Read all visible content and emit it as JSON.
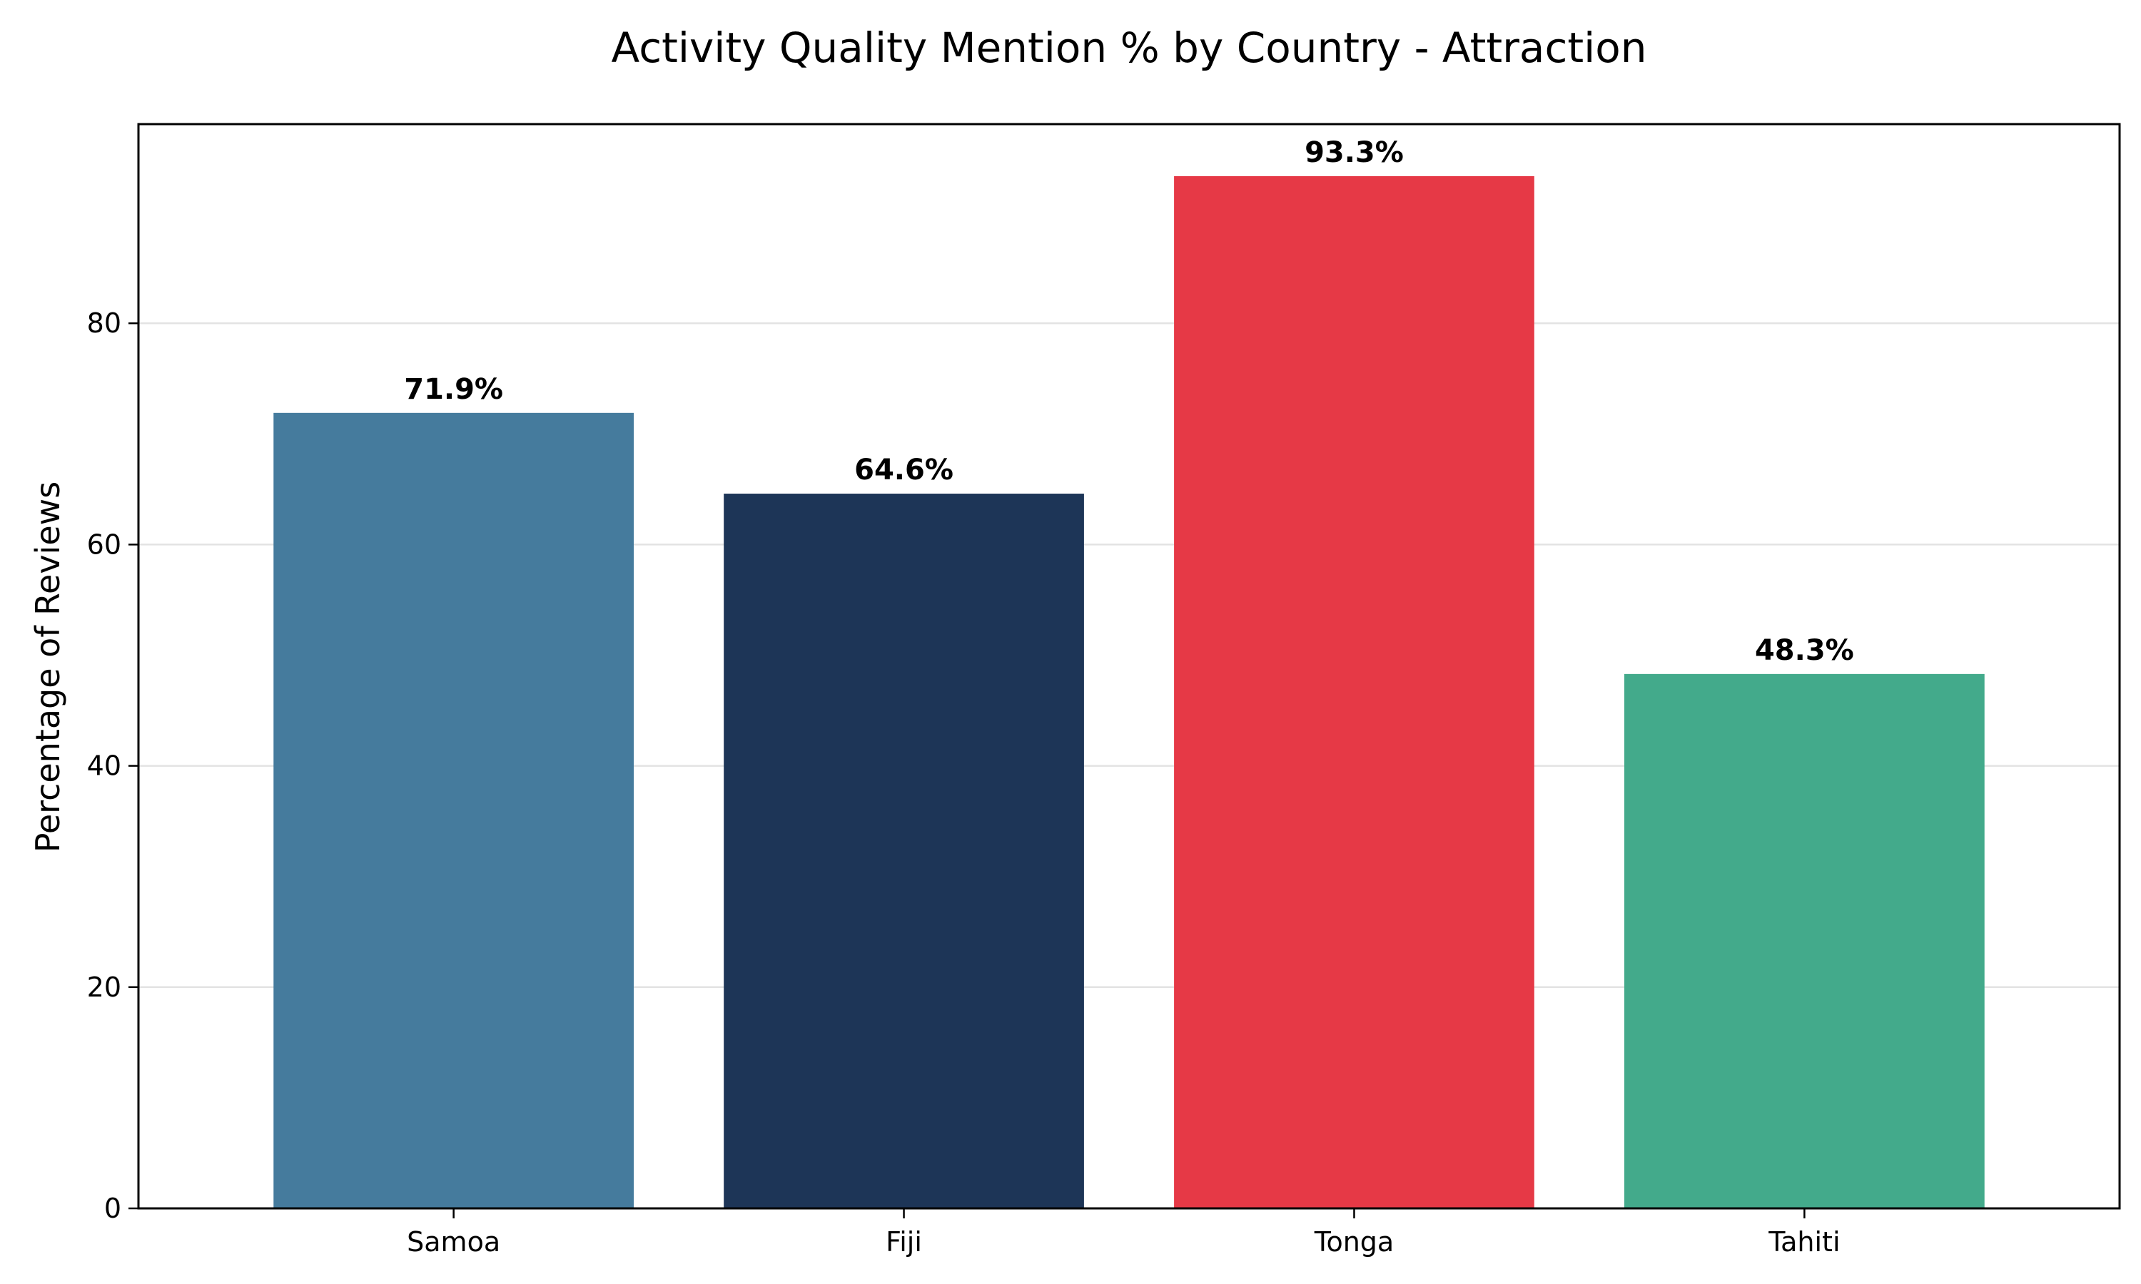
{
  "chart_data": {
    "type": "bar",
    "title": "Activity Quality Mention % by Country - Attraction",
    "xlabel": "",
    "ylabel": "Percentage of Reviews",
    "categories": [
      "Samoa",
      "Fiji",
      "Tonga",
      "Tahiti"
    ],
    "values": [
      71.9,
      64.6,
      93.3,
      48.3
    ],
    "value_labels": [
      "71.9%",
      "64.6%",
      "93.3%",
      "48.3%"
    ],
    "colors": [
      "#457b9d",
      "#1d3557",
      "#e63946",
      "#43aa8b"
    ],
    "yticks": [
      0,
      20,
      40,
      60,
      80
    ],
    "ytick_labels": [
      "0",
      "20",
      "40",
      "60",
      "80"
    ],
    "ylim": [
      0,
      98
    ],
    "grid": "horizontal",
    "legend": "none"
  }
}
